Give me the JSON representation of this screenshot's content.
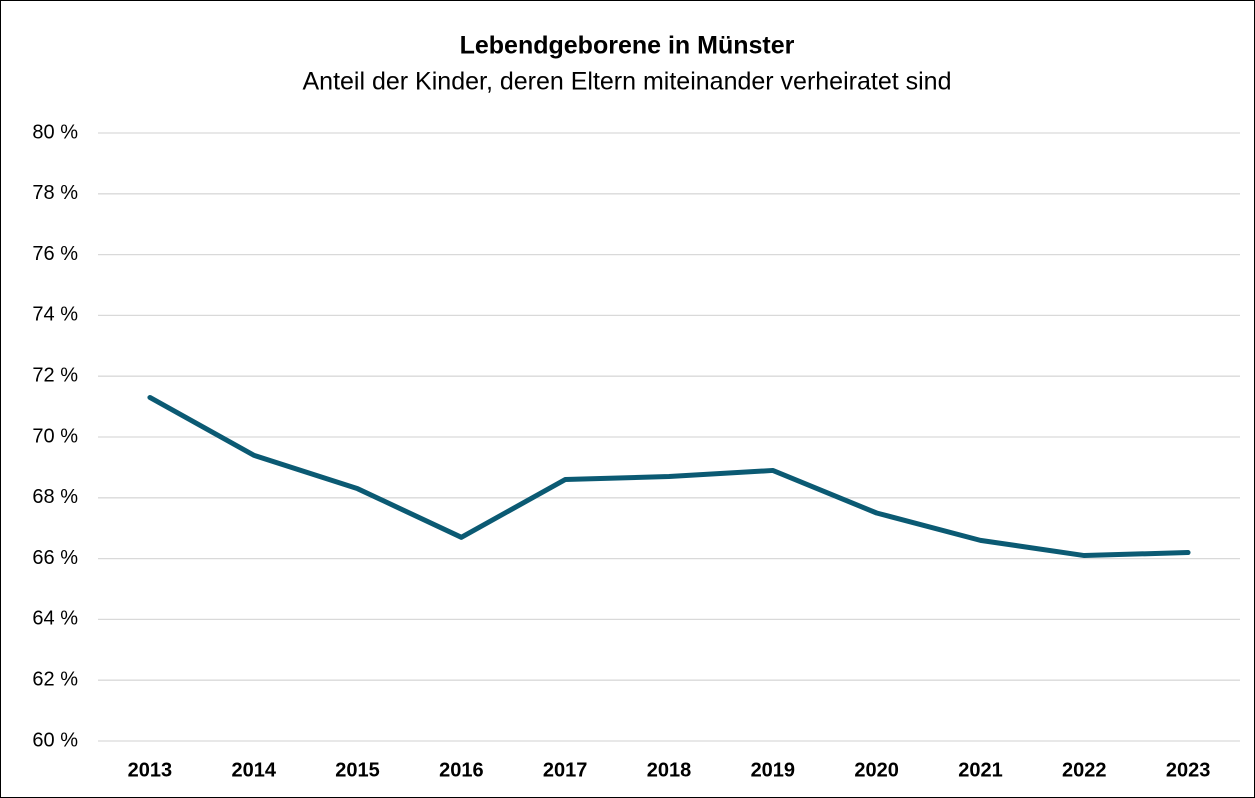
{
  "chart_data": {
    "type": "line",
    "title": "Lebendgeborene in Münster",
    "subtitle": "Anteil der Kinder, deren Eltern miteinander verheiratet sind",
    "categories": [
      "2013",
      "2014",
      "2015",
      "2016",
      "2017",
      "2018",
      "2019",
      "2020",
      "2021",
      "2022",
      "2023"
    ],
    "series": [
      {
        "name": "Anteil",
        "color": "#0b5a73",
        "values": [
          71.3,
          69.4,
          68.3,
          66.7,
          68.6,
          68.7,
          68.9,
          67.5,
          66.6,
          66.1,
          66.2
        ]
      }
    ],
    "ylim": [
      60,
      80
    ],
    "yticks": [
      {
        "value": 60,
        "label": "60 %"
      },
      {
        "value": 62,
        "label": "62 %"
      },
      {
        "value": 64,
        "label": "64 %"
      },
      {
        "value": 66,
        "label": "66 %"
      },
      {
        "value": 68,
        "label": "68 %"
      },
      {
        "value": 70,
        "label": "70 %"
      },
      {
        "value": 72,
        "label": "72 %"
      },
      {
        "value": 74,
        "label": "74 %"
      },
      {
        "value": 76,
        "label": "76 %"
      },
      {
        "value": 78,
        "label": "78 %"
      },
      {
        "value": 80,
        "label": "80 %"
      }
    ],
    "grid": true
  }
}
